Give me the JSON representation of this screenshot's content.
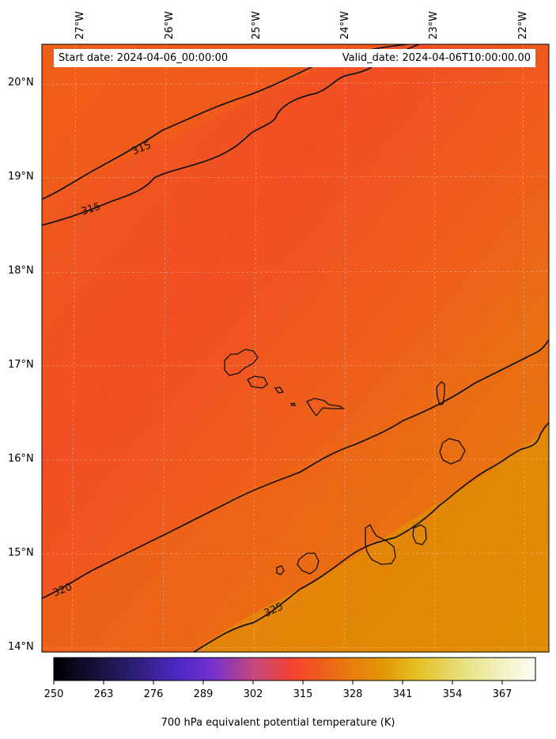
{
  "map": {
    "start_label": "Start date: 2024-04-06_00:00:00",
    "valid_label": "Valid_date: 2024-04-06T10:00:00.00",
    "longitudes": [
      "27°W",
      "26°W",
      "25°W",
      "24°W",
      "23°W",
      "22°W"
    ],
    "latitudes": [
      "20°N",
      "19°N",
      "18°N",
      "17°N",
      "16°N",
      "15°N",
      "14°N"
    ],
    "contour_labels": [
      "315",
      "315",
      "320",
      "325"
    ],
    "colorbar": {
      "title": "700 hPa equivalent potential temperature (K)",
      "ticks": [
        "250",
        "263",
        "276",
        "289",
        "302",
        "315",
        "328",
        "341",
        "354",
        "367"
      ],
      "range": [
        250,
        376
      ],
      "colormap": "CMRmap",
      "colors": [
        "#000000",
        "#2a1d6b",
        "#5327cc",
        "#a342a0",
        "#f3402b",
        "#e28a05",
        "#e6cd2c",
        "#fbfbf4"
      ]
    },
    "field_colors": {
      "low": "#f24d24",
      "mid": "#ec6317",
      "high": "#e38c05"
    }
  }
}
